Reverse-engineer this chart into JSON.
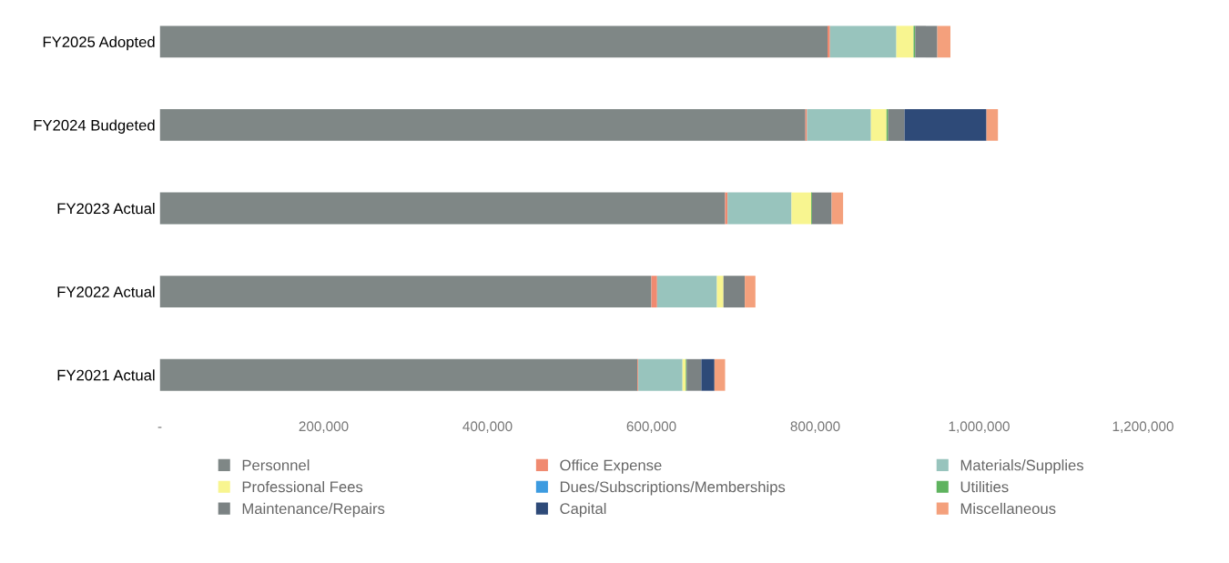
{
  "chart_data": {
    "type": "bar",
    "orientation": "horizontal",
    "stacked": true,
    "legend": "bottom",
    "grid": false,
    "categories": [
      "FY2025 Adopted",
      "FY2024 Budgeted",
      "FY2023 Actual",
      "FY2022 Actual",
      "FY2021 Actual"
    ],
    "xlim": [
      0,
      1200000
    ],
    "xticks": [
      {
        "value": 0,
        "label": "-"
      },
      {
        "value": 200000,
        "label": "200,000"
      },
      {
        "value": 400000,
        "label": "400,000"
      },
      {
        "value": 600000,
        "label": "600,000"
      },
      {
        "value": 800000,
        "label": "800,000"
      },
      {
        "value": 1000000,
        "label": "1,000,000"
      },
      {
        "value": 1200000,
        "label": "1,200,000"
      }
    ],
    "series": [
      {
        "name": "Personnel",
        "color": "#7f8786",
        "values": [
          815000,
          788000,
          690000,
          600000,
          583000
        ]
      },
      {
        "name": "Office Expense",
        "color": "#f08a70",
        "values": [
          3000,
          2000,
          3000,
          7000,
          1000
        ]
      },
      {
        "name": "Materials/Supplies",
        "color": "#98c4bd",
        "values": [
          81000,
          78000,
          78000,
          73000,
          54000
        ]
      },
      {
        "name": "Professional Fees",
        "color": "#f8f590",
        "values": [
          21000,
          19000,
          24000,
          8000,
          4000
        ]
      },
      {
        "name": "Dues/Subscriptions/Memberships",
        "color": "#3d9be0",
        "values": [
          0,
          0,
          0,
          0,
          0
        ]
      },
      {
        "name": "Utilities",
        "color": "#5fb35f",
        "values": [
          2000,
          2000,
          1000,
          0,
          1000
        ]
      },
      {
        "name": "Maintenance/Repairs",
        "color": "#7b8283",
        "values": [
          27000,
          20000,
          24000,
          26000,
          18000
        ]
      },
      {
        "name": "Capital",
        "color": "#2e4a78",
        "values": [
          0,
          100000,
          0,
          0,
          16000
        ]
      },
      {
        "name": "Miscellaneous",
        "color": "#f4a07c",
        "values": [
          16000,
          14000,
          14000,
          13000,
          13000
        ]
      }
    ]
  }
}
